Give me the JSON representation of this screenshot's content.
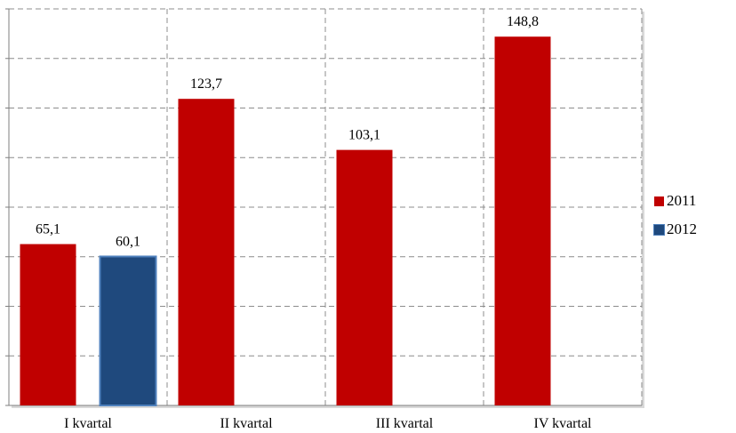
{
  "chart_data": {
    "type": "bar",
    "categories": [
      "I kvartal",
      "II kvartal",
      "III kvartal",
      "IV kvartal"
    ],
    "series": [
      {
        "name": "2011",
        "color": "#c00000",
        "values": [
          65.1,
          123.7,
          103.1,
          148.8
        ]
      },
      {
        "name": "2012",
        "color": "#1f497d",
        "values": [
          60.1,
          null,
          null,
          null
        ]
      }
    ],
    "data_labels": [
      [
        "65,1",
        "123,7",
        "103,1",
        "148,8"
      ],
      [
        "60,1",
        null,
        null,
        null
      ]
    ],
    "ylim": [
      0,
      160
    ],
    "grid": true,
    "legend_position": "right"
  }
}
